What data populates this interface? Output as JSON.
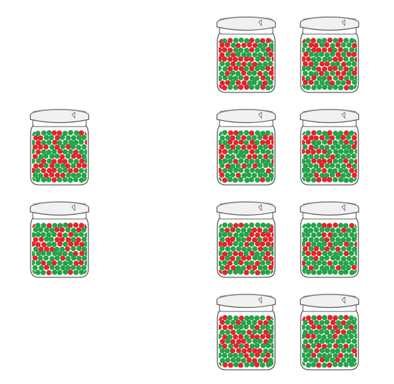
{
  "colors": {
    "background": "#ffffff",
    "bead_red": "#e0262b",
    "bead_green": "#25a24a",
    "glass_outline": "#5c5c5c",
    "lid_fill": "#f1f1f1"
  },
  "jar_groups": [
    {
      "name": "left-group",
      "jars": [
        {
          "label": "",
          "red_fraction": 0.5
        },
        {
          "label": "",
          "red_fraction": 0.4
        }
      ]
    },
    {
      "name": "right-group",
      "jars": [
        {
          "label": "",
          "red_fraction": 0.45
        },
        {
          "label": "",
          "red_fraction": 0.38
        },
        {
          "label": "",
          "red_fraction": 0.42
        },
        {
          "label": "",
          "red_fraction": 0.35
        },
        {
          "label": "",
          "red_fraction": 0.4
        },
        {
          "label": "",
          "red_fraction": 0.3
        },
        {
          "label": "",
          "red_fraction": 0.4
        },
        {
          "label": "",
          "red_fraction": 0.33
        }
      ]
    }
  ]
}
